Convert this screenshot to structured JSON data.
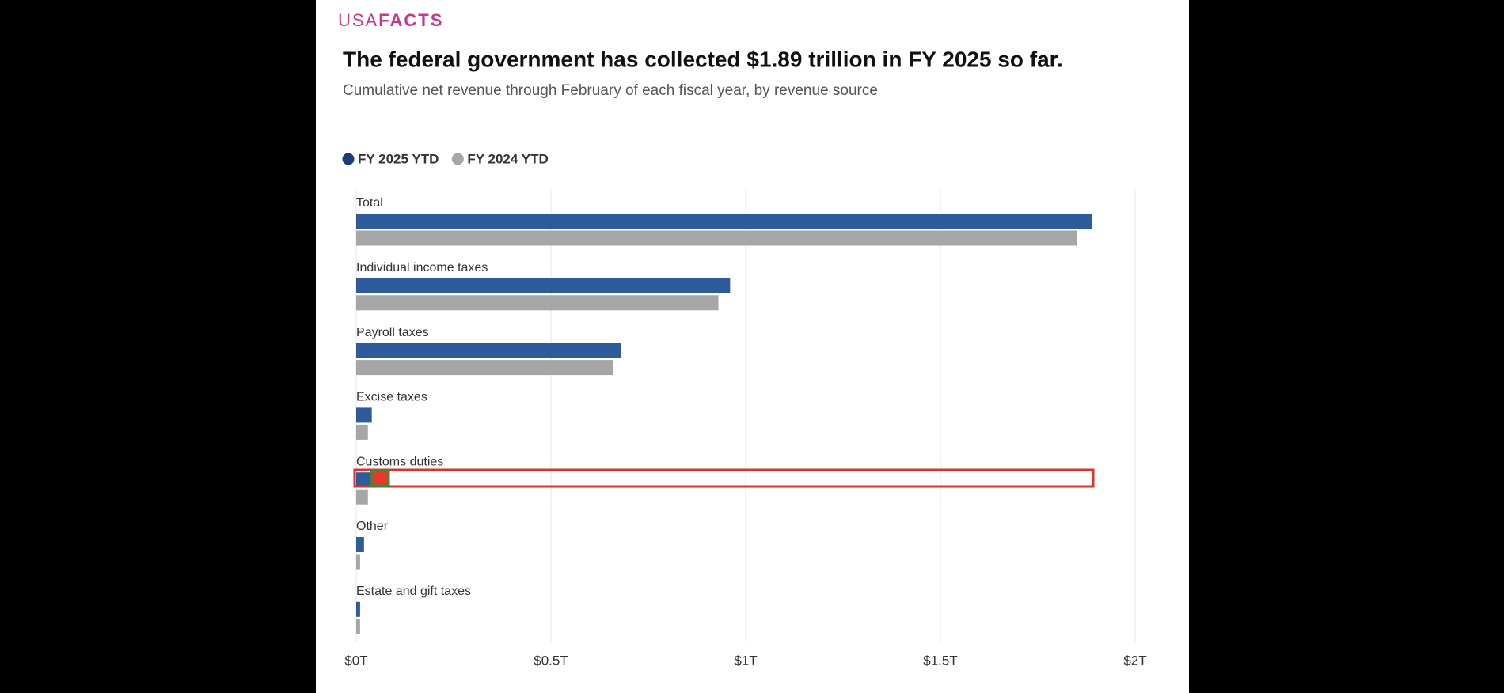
{
  "brand": {
    "prefix": "USA",
    "name": "FACTS"
  },
  "chart_data": {
    "type": "bar",
    "orientation": "horizontal",
    "title": "The federal government has collected $1.89 trillion in FY 2025 so far.",
    "subtitle": "Cumulative net revenue through February of each fiscal year, by revenue source",
    "categories": [
      "Total",
      "Individual income taxes",
      "Payroll taxes",
      "Excise taxes",
      "Customs duties",
      "Other",
      "Estate and gift taxes"
    ],
    "series": [
      {
        "name": "FY 2025 YTD",
        "color": "#2e5b9a",
        "values": [
          1.89,
          0.96,
          0.68,
          0.04,
          0.04,
          0.02,
          0.01
        ]
      },
      {
        "name": "FY 2024 YTD",
        "color": "#a6a6a6",
        "values": [
          1.85,
          0.93,
          0.66,
          0.03,
          0.03,
          0.01,
          0.01
        ]
      }
    ],
    "xlim": [
      0,
      2
    ],
    "xticks": [
      {
        "value": 0,
        "label": "$0T"
      },
      {
        "value": 0.5,
        "label": "$0.5T"
      },
      {
        "value": 1,
        "label": "$1T"
      },
      {
        "value": 1.5,
        "label": "$1.5T"
      },
      {
        "value": 2,
        "label": "$2T"
      }
    ],
    "grid": true,
    "legend": "top-left"
  }
}
